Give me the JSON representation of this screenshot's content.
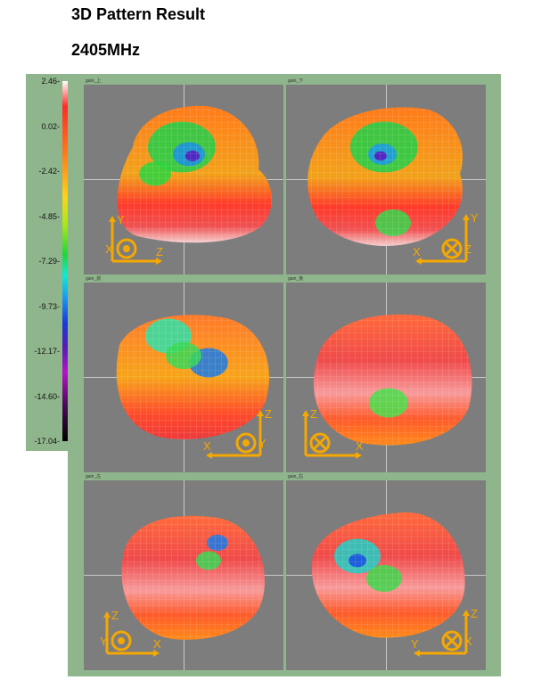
{
  "page": {
    "title": "3D Pattern Result",
    "frequency": "2405MHz"
  },
  "chart_data": {
    "type": "heatmap",
    "title": "3D Pattern Result",
    "subtitle": "2405MHz",
    "colorbar": {
      "ticks": [
        "2.46-",
        "0.02-",
        "-2.42-",
        "-4.85-",
        "-7.29-",
        "-9.73-",
        "-12.17-",
        "-14.60-",
        "-17.04-"
      ],
      "range": [
        -17.04,
        2.46
      ],
      "colormap": "white-red-orange-yellow-green-cyan-blue-purple-black"
    },
    "views": [
      {
        "label": "gain_上",
        "axes": [
          "Y",
          "Z",
          "X"
        ],
        "orientation": "out-of-page"
      },
      {
        "label": "gain_下",
        "axes": [
          "Y",
          "X",
          "Z"
        ],
        "orientation": "into-page"
      },
      {
        "label": "gain_前",
        "axes": [
          "Z",
          "X",
          "Y"
        ],
        "orientation": "out-of-page"
      },
      {
        "label": "gain_後",
        "axes": [
          "Z",
          "X"
        ],
        "orientation": "into-page"
      },
      {
        "label": "gain_左",
        "axes": [
          "Z",
          "X",
          "Y"
        ],
        "orientation": "out-of-page"
      },
      {
        "label": "gain_右",
        "axes": [
          "Z",
          "Y",
          "X"
        ],
        "orientation": "into-page"
      }
    ]
  },
  "colors": {
    "panel": "#8fb58c",
    "viewport": "#7d7d7d",
    "axis_marker": "#f5a800"
  }
}
